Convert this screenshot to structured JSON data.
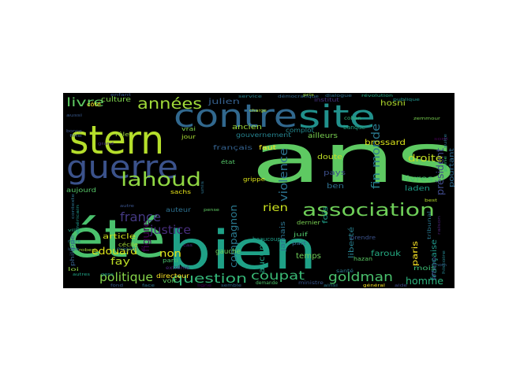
{
  "figure": {
    "background": "#ffffff",
    "panel_background": "#000000"
  },
  "words": [
    {
      "text": "ans",
      "color": "#5ec962"
    },
    {
      "text": "été",
      "color": "#4ac16d"
    },
    {
      "text": "bien",
      "color": "#1fa187"
    },
    {
      "text": "stern",
      "color": "#b5de2b"
    },
    {
      "text": "contre",
      "color": "#31688e"
    },
    {
      "text": "site",
      "color": "#21918c"
    },
    {
      "text": "guerre",
      "color": "#3b528b"
    },
    {
      "text": "lahoud",
      "color": "#90d743"
    },
    {
      "text": "association",
      "color": "#6ece58"
    },
    {
      "text": "années",
      "color": "#a0da39"
    },
    {
      "text": "france",
      "color": "#443983"
    },
    {
      "text": "justice",
      "color": "#472d7b"
    },
    {
      "text": "question",
      "color": "#35b779"
    },
    {
      "text": "coupat",
      "color": "#3aba76"
    },
    {
      "text": "goldman",
      "color": "#4ac16d"
    },
    {
      "text": "politique",
      "color": "#86d549"
    },
    {
      "text": "livre",
      "color": "#5ec962"
    },
    {
      "text": "fin",
      "color": "#26828e"
    },
    {
      "text": "monde",
      "color": "#2a788e"
    },
    {
      "text": "violence",
      "color": "#2c728e"
    },
    {
      "text": "président",
      "color": "#3e4989"
    },
    {
      "text": "homme",
      "color": "#2db27d"
    },
    {
      "text": "droite",
      "color": "#c2df23"
    },
    {
      "text": "rien",
      "color": "#cae11f"
    },
    {
      "text": "compagnon",
      "color": "#2a788e"
    },
    {
      "text": "edouard",
      "color": "#dde318"
    },
    {
      "text": "fay",
      "color": "#bddf26"
    },
    {
      "text": "non",
      "color": "#e5e419"
    },
    {
      "text": "figure",
      "color": "#440154"
    },
    {
      "text": "gauche",
      "color": "#6ccd5a"
    },
    {
      "text": "aucune",
      "color": "#20a386"
    },
    {
      "text": "temps",
      "color": "#6ece58"
    },
    {
      "text": "paris",
      "color": "#fde725"
    },
    {
      "text": "farouk",
      "color": "#25ab82"
    },
    {
      "text": "française",
      "color": "#1f988b"
    },
    {
      "text": "livres",
      "color": "#48c16e"
    },
    {
      "text": "pourtant",
      "color": "#306a8e"
    },
    {
      "text": "laden",
      "color": "#1f9e89"
    },
    {
      "text": "ben",
      "color": "#2e6f8e"
    },
    {
      "text": "brossard",
      "color": "#d8e219"
    },
    {
      "text": "hosni",
      "color": "#b2dd2d"
    },
    {
      "text": "culture",
      "color": "#7fd34e"
    },
    {
      "text": "julien",
      "color": "#35608d"
    },
    {
      "text": "ancien",
      "color": "#9bd93c"
    },
    {
      "text": "gouvernement",
      "color": "#26828e"
    },
    {
      "text": "ailleurs",
      "color": "#7ad151"
    },
    {
      "text": "doute",
      "color": "#c0df25"
    },
    {
      "text": "pays",
      "color": "#3c4f8a"
    },
    {
      "text": "fois",
      "color": "#1fa088"
    },
    {
      "text": "auteur",
      "color": "#2d708e"
    },
    {
      "text": "article",
      "color": "#d0e11c"
    },
    {
      "text": "aujourd",
      "color": "#56c667"
    },
    {
      "text": "français",
      "color": "#34618d"
    },
    {
      "text": "liberté",
      "color": "#277f8e"
    },
    {
      "text": "mois",
      "color": "#3dbc74"
    },
    {
      "text": "jamais",
      "color": "#2c738e"
    },
    {
      "text": "directeur",
      "color": "#fde725"
    },
    {
      "text": "voir",
      "color": "#63cb5f"
    },
    {
      "text": "sachs",
      "color": "#e7e419"
    },
    {
      "text": "philippe",
      "color": "#355f8d"
    },
    {
      "text": "cécile",
      "color": "#a2da37"
    },
    {
      "text": "rôle",
      "color": "#9dd93b"
    },
    {
      "text": "vrai",
      "color": "#81d34d"
    },
    {
      "text": "état",
      "color": "#54c568"
    },
    {
      "text": "faut",
      "color": "#fde725"
    },
    {
      "text": "grippe",
      "color": "#dae319"
    },
    {
      "text": "complot",
      "color": "#23898e"
    },
    {
      "text": "banque",
      "color": "#22a785"
    },
    {
      "text": "juif",
      "color": "#50c46a"
    },
    {
      "text": "dernier",
      "color": "#7ad151"
    },
    {
      "text": "prendre",
      "color": "#3b528b"
    },
    {
      "text": "hazan",
      "color": "#5ac864"
    },
    {
      "text": "demande",
      "color": "#4ec36b"
    },
    {
      "text": "ministre",
      "color": "#39558c"
    },
    {
      "text": "santé",
      "color": "#2a778e"
    },
    {
      "text": "tribunal",
      "color": "#2a768e"
    },
    {
      "text": "affaire",
      "color": "#3f4889"
    },
    {
      "text": "institut",
      "color": "#46337f"
    },
    {
      "text": "côté",
      "color": "#fde725"
    },
    {
      "text": "jour",
      "color": "#a8db34"
    },
    {
      "text": "part",
      "color": "#31678e"
    },
    {
      "text": "beaucoup",
      "color": "#1e9c89"
    },
    {
      "text": "cohan",
      "color": "#35b779"
    },
    {
      "text": "charge",
      "color": "#b5de2b"
    },
    {
      "text": "parti",
      "color": "#4ac16d"
    },
    {
      "text": "extrême",
      "color": "#482878"
    },
    {
      "text": "magard",
      "color": "#2a778e"
    },
    {
      "text": "robert",
      "color": "#a5db36"
    },
    {
      "text": "loi",
      "color": "#90d743"
    },
    {
      "text": "aussi",
      "color": "#38588c"
    },
    {
      "text": "bonne",
      "color": "#3b528b"
    },
    {
      "text": "unis",
      "color": "#2c728e"
    },
    {
      "text": "pense",
      "color": "#5ec962"
    },
    {
      "text": "fille",
      "color": "#39568c"
    },
    {
      "text": "grand",
      "color": "#46307e"
    },
    {
      "text": "autre",
      "color": "#3a538b"
    },
    {
      "text": "publique",
      "color": "#1f948c"
    },
    {
      "text": "révolution",
      "color": "#22a884"
    },
    {
      "text": "démocratique",
      "color": "#31688e"
    },
    {
      "text": "dialogue",
      "color": "#2d708e"
    },
    {
      "text": "pris",
      "color": "#a0da39"
    },
    {
      "text": "zemmour",
      "color": "#7ad151"
    },
    {
      "text": "service",
      "color": "#26828e"
    },
    {
      "text": "enfant",
      "color": "#39568c"
    },
    {
      "text": "autres",
      "color": "#20a386"
    },
    {
      "text": "gens",
      "color": "#1f988b"
    },
    {
      "text": "fond",
      "color": "#365d8d"
    },
    {
      "text": "face",
      "color": "#2c738e"
    },
    {
      "text": "ligne",
      "color": "#440154"
    },
    {
      "text": "semble",
      "color": "#31688e"
    },
    {
      "text": "ainsi",
      "color": "#2a788e"
    },
    {
      "text": "général",
      "color": "#fde725"
    },
    {
      "text": "aide",
      "color": "#3e4989"
    },
    {
      "text": "raison",
      "color": "#481f70"
    },
    {
      "text": "histoire",
      "color": "#25848e"
    },
    {
      "text": "peine",
      "color": "#35b779"
    },
    {
      "text": "suite",
      "color": "#2a778e"
    },
    {
      "text": "contexte",
      "color": "#2c728e"
    },
    {
      "text": "américain",
      "color": "#1f988b"
    },
    {
      "text": "ville",
      "color": "#22a785"
    },
    {
      "text": "mère",
      "color": "#277f8e"
    },
    {
      "text": "best",
      "color": "#b5de2b"
    },
    {
      "text": "nom",
      "color": "#34618d"
    },
    {
      "text": "sorti",
      "color": "#440154"
    },
    {
      "text": "cas",
      "color": "#482878"
    },
    {
      "text": "idée",
      "color": "#31688e"
    }
  ]
}
